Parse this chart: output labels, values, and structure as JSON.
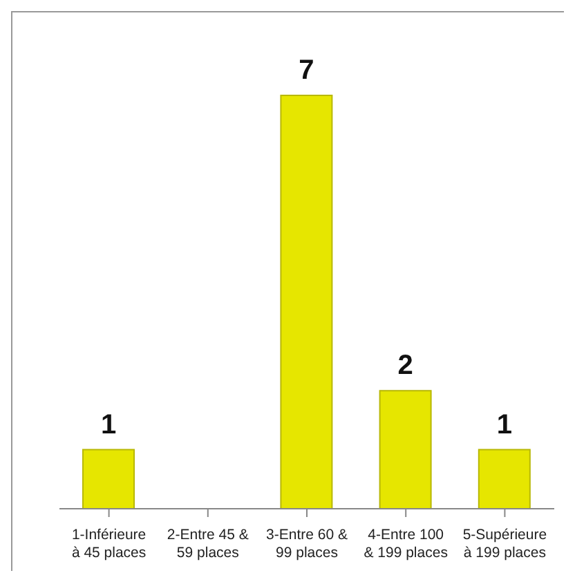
{
  "chart_data": {
    "type": "bar",
    "categories": [
      "1-Inférieure à 45 places",
      "2-Entre 45 & 59 places",
      "3-Entre 60 & 99 places",
      "4-Entre 100 & 199 places",
      "5-Supérieure à 199 places"
    ],
    "values": [
      1,
      null,
      7,
      2,
      1
    ],
    "value_labels": [
      "1",
      null,
      "7",
      "2",
      "1"
    ],
    "color": "#e6e600",
    "grid": false,
    "legend": false
  }
}
